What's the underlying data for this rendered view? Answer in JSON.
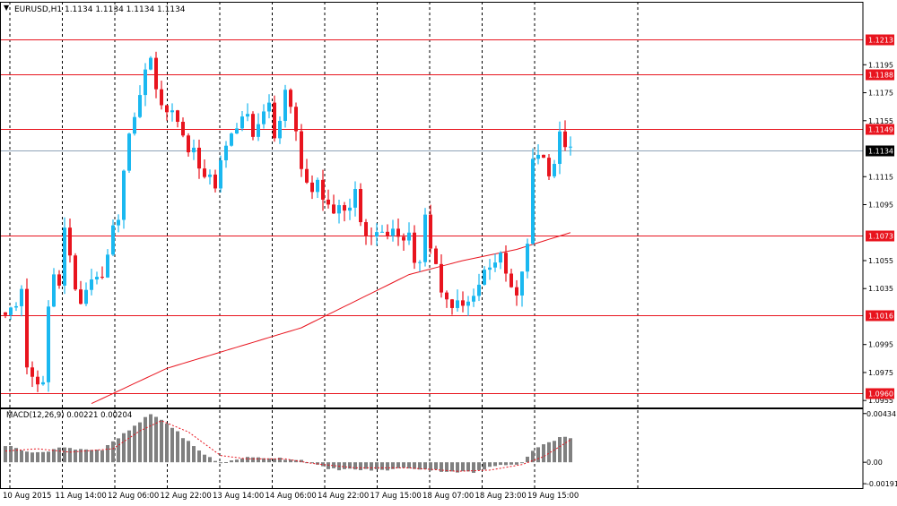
{
  "header": {
    "symbol_line": "EURUSD,H1  1.1134 1.1134 1.1134 1.1134",
    "menu_icon": "triangle-down-icon"
  },
  "macd": {
    "label": "MACD(12,26,9) 0.00221 0.00204",
    "axis_labels": [
      "0.00434",
      "0.00",
      "-0.00191"
    ]
  },
  "colors": {
    "bull_candle": "#1ab8f0",
    "bear_candle": "#e8141e",
    "level_line": "#e8141e",
    "moving_average": "#e8141e",
    "current_price_line": "#8fa3b8",
    "current_price_tag": "#000000",
    "macd_histogram": "#808080",
    "macd_signal": "#e8141e",
    "axis": "#000000"
  },
  "chart_data": {
    "type": "candlestick",
    "symbol": "EURUSD",
    "timeframe": "H1",
    "current_price": 1.1134,
    "price_axis": {
      "range": [
        1.095,
        1.124
      ],
      "tick_labels": [
        "1.1195",
        "1.1175",
        "1.1155",
        "1.1115",
        "1.1095",
        "1.1055",
        "1.1035",
        "1.0995",
        "1.0975",
        "1.0955"
      ],
      "marked_labels": [
        "1.1213",
        "1.1188",
        "1.1149",
        "1.1134",
        "1.1073",
        "1.1016",
        "1.0960"
      ]
    },
    "horizontal_levels": [
      1.1213,
      1.1188,
      1.1149,
      1.1073,
      1.1016,
      1.096
    ],
    "time_labels": [
      "10 Aug 2015",
      "11 Aug 14:00",
      "12 Aug 06:00",
      "12 Aug 22:00",
      "13 Aug 14:00",
      "14 Aug 06:00",
      "14 Aug 22:00",
      "17 Aug 15:00",
      "18 Aug 07:00",
      "18 Aug 23:00",
      "19 Aug 15:00"
    ],
    "price_path": [
      [
        0,
        1.1018
      ],
      [
        2,
        1.1022
      ],
      [
        3,
        1.1035
      ],
      [
        4,
        1.098
      ],
      [
        5,
        1.097
      ],
      [
        6,
        1.0965
      ],
      [
        7,
        1.0968
      ],
      [
        8,
        1.1022
      ],
      [
        9,
        1.1045
      ],
      [
        10,
        1.104
      ],
      [
        11,
        1.1078
      ],
      [
        12,
        1.1058
      ],
      [
        13,
        1.1035
      ],
      [
        14,
        1.1022
      ],
      [
        15,
        1.1035
      ],
      [
        16,
        1.1042
      ],
      [
        17,
        1.1045
      ],
      [
        18,
        1.104
      ],
      [
        19,
        1.1058
      ],
      [
        20,
        1.1078
      ],
      [
        21,
        1.1082
      ],
      [
        22,
        1.1122
      ],
      [
        23,
        1.1145
      ],
      [
        24,
        1.1155
      ],
      [
        25,
        1.1175
      ],
      [
        26,
        1.119
      ],
      [
        27,
        1.1202
      ],
      [
        28,
        1.1175
      ],
      [
        29,
        1.1168
      ],
      [
        30,
        1.1162
      ],
      [
        31,
        1.1162
      ],
      [
        32,
        1.1155
      ],
      [
        33,
        1.1145
      ],
      [
        34,
        1.1132
      ],
      [
        35,
        1.1138
      ],
      [
        36,
        1.112
      ],
      [
        37,
        1.1112
      ],
      [
        38,
        1.1118
      ],
      [
        39,
        1.1108
      ],
      [
        40,
        1.1125
      ],
      [
        41,
        1.1135
      ],
      [
        42,
        1.1145
      ],
      [
        43,
        1.1152
      ],
      [
        44,
        1.1158
      ],
      [
        45,
        1.1158
      ],
      [
        46,
        1.1142
      ],
      [
        47,
        1.1155
      ],
      [
        48,
        1.1162
      ],
      [
        49,
        1.1165
      ],
      [
        50,
        1.114
      ],
      [
        51,
        1.1155
      ],
      [
        52,
        1.1178
      ],
      [
        53,
        1.1165
      ],
      [
        54,
        1.115
      ],
      [
        55,
        1.1118
      ],
      [
        56,
        1.1112
      ],
      [
        57,
        1.1105
      ],
      [
        58,
        1.1112
      ],
      [
        59,
        1.1098
      ],
      [
        60,
        1.1095
      ],
      [
        61,
        1.109
      ],
      [
        62,
        1.1092
      ],
      [
        63,
        1.1088
      ],
      [
        64,
        1.1095
      ],
      [
        65,
        1.1105
      ],
      [
        66,
        1.1085
      ],
      [
        67,
        1.107
      ],
      [
        68,
        1.1072
      ],
      [
        69,
        1.1076
      ],
      [
        70,
        1.1075
      ],
      [
        71,
        1.1073
      ],
      [
        72,
        1.1078
      ],
      [
        73,
        1.1075
      ],
      [
        74,
        1.1068
      ],
      [
        75,
        1.1076
      ],
      [
        76,
        1.1055
      ],
      [
        77,
        1.1052
      ],
      [
        78,
        1.1085
      ],
      [
        79,
        1.1065
      ],
      [
        80,
        1.1055
      ],
      [
        81,
        1.1032
      ],
      [
        82,
        1.1028
      ],
      [
        83,
        1.102
      ],
      [
        84,
        1.1025
      ],
      [
        85,
        1.1022
      ],
      [
        86,
        1.1025
      ],
      [
        87,
        1.1032
      ],
      [
        88,
        1.1038
      ],
      [
        89,
        1.1048
      ],
      [
        90,
        1.1052
      ],
      [
        91,
        1.1055
      ],
      [
        92,
        1.1058
      ],
      [
        93,
        1.1045
      ],
      [
        94,
        1.1035
      ],
      [
        95,
        1.1028
      ],
      [
        96,
        1.1048
      ],
      [
        97,
        1.1065
      ],
      [
        98,
        1.1128
      ],
      [
        99,
        1.1132
      ],
      [
        100,
        1.1128
      ],
      [
        101,
        1.1118
      ],
      [
        102,
        1.1125
      ],
      [
        103,
        1.1145
      ],
      [
        104,
        1.1138
      ],
      [
        105,
        1.1134
      ]
    ],
    "moving_average": [
      [
        0,
        1.0924
      ],
      [
        30,
        1.0978
      ],
      [
        55,
        1.1007
      ],
      [
        75,
        1.1045
      ],
      [
        85,
        1.1055
      ],
      [
        95,
        1.1063
      ],
      [
        105,
        1.1075
      ]
    ],
    "macd": {
      "signal_name": "MACD(12,26,9)",
      "main": 0.00221,
      "signal": 0.00204,
      "axis_labels": [
        "0.00434",
        "0.00",
        "-0.00191"
      ],
      "histogram_path": [
        [
          0,
          0.0015
        ],
        [
          6,
          0.0008
        ],
        [
          10,
          0.0013
        ],
        [
          18,
          0.0011
        ],
        [
          24,
          0.0032
        ],
        [
          27,
          0.0043
        ],
        [
          30,
          0.0035
        ],
        [
          36,
          0.001
        ],
        [
          40,
          -0.0001
        ],
        [
          44,
          0.0004
        ],
        [
          50,
          0.0004
        ],
        [
          55,
          0.0002
        ],
        [
          60,
          -0.0006
        ],
        [
          70,
          -0.0007
        ],
        [
          75,
          -0.0005
        ],
        [
          82,
          -0.0008
        ],
        [
          87,
          -0.0009
        ],
        [
          92,
          -0.0002
        ],
        [
          96,
          -0.0001
        ],
        [
          98,
          0.0011
        ],
        [
          103,
          0.0022
        ],
        [
          105,
          0.0022
        ]
      ],
      "signal_path": [
        [
          0,
          0.001
        ],
        [
          6,
          0.0012
        ],
        [
          12,
          0.0009
        ],
        [
          20,
          0.0012
        ],
        [
          25,
          0.0028
        ],
        [
          29,
          0.0037
        ],
        [
          34,
          0.0027
        ],
        [
          40,
          0.0006
        ],
        [
          45,
          0.0003
        ],
        [
          52,
          0.0003
        ],
        [
          57,
          -0.0001
        ],
        [
          65,
          -0.0005
        ],
        [
          75,
          -0.0005
        ],
        [
          84,
          -0.0008
        ],
        [
          90,
          -0.0007
        ],
        [
          96,
          -0.0002
        ],
        [
          100,
          0.0005
        ],
        [
          105,
          0.002
        ]
      ]
    }
  }
}
